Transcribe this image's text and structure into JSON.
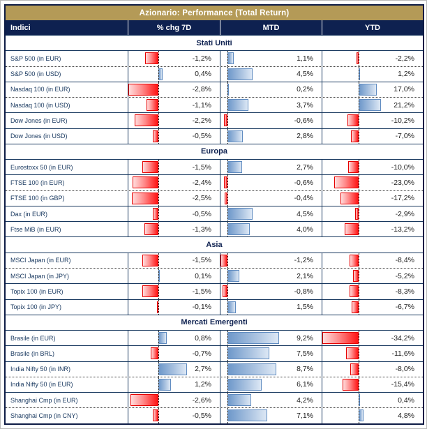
{
  "title_bar": {
    "text": "Azionario: Performance (Total Return)"
  },
  "header": {
    "indici": "Indici",
    "chg7d": "% chg 7D",
    "mtd": "MTD",
    "ytd": "YTD"
  },
  "colors": {
    "title_gold": "#b49a57",
    "header_navy": "#0e2150",
    "grid_navy": "#17375e",
    "negative_bar": "#ff0000",
    "positive_bar": "#6e98ca"
  },
  "chart_data": {
    "type": "table",
    "title": "Azionario: Performance (Total Return)",
    "columns": [
      "Indici",
      "% chg 7D",
      "MTD",
      "YTD"
    ],
    "value_format": "percent, 1 decimal, comma as decimal separator",
    "databar_axis_ranges": {
      "chg7d": [
        -2.8,
        2.7
      ],
      "mtd": [
        -1.2,
        9.2
      ],
      "ytd": [
        -34.2,
        21.2
      ]
    },
    "databar_colors": {
      "negative": "red",
      "positive": "blue"
    },
    "sections": [
      {
        "title": "Stati Uniti",
        "rows": [
          {
            "label": "S&P 500 (in EUR)",
            "values": [
              -1.2,
              1.1,
              -2.2
            ],
            "display": [
              "-1,2%",
              "1,1%",
              "-2,2%"
            ],
            "sep": "solid"
          },
          {
            "label": "S&P 500 (in USD)",
            "values": [
              0.4,
              4.5,
              1.2
            ],
            "display": [
              "0,4%",
              "4,5%",
              "1,2%"
            ],
            "sep": "dotted"
          },
          {
            "label": "Nasdaq 100 (in EUR)",
            "values": [
              -2.8,
              0.2,
              17.0
            ],
            "display": [
              "-2,8%",
              "0,2%",
              "17,0%"
            ],
            "sep": "solid"
          },
          {
            "label": "Nasdaq 100 (in USD)",
            "values": [
              -1.1,
              3.7,
              21.2
            ],
            "display": [
              "-1,1%",
              "3,7%",
              "21,2%"
            ],
            "sep": "dotted"
          },
          {
            "label": "Dow Jones (in EUR)",
            "values": [
              -2.2,
              -0.6,
              -10.2
            ],
            "display": [
              "-2,2%",
              "-0,6%",
              "-10,2%"
            ],
            "sep": "solid"
          },
          {
            "label": "Dow Jones (in USD)",
            "values": [
              -0.5,
              2.8,
              -7.0
            ],
            "display": [
              "-0,5%",
              "2,8%",
              "-7,0%"
            ],
            "sep": "solid"
          }
        ]
      },
      {
        "title": "Europa",
        "rows": [
          {
            "label": "Eurostoxx 50 (in EUR)",
            "values": [
              -1.5,
              2.7,
              -10.0
            ],
            "display": [
              "-1,5%",
              "2,7%",
              "-10,0%"
            ],
            "sep": "solid"
          },
          {
            "label": "FTSE 100 (in EUR)",
            "values": [
              -2.4,
              -0.6,
              -23.0
            ],
            "display": [
              "-2,4%",
              "-0,6%",
              "-23,0%"
            ],
            "sep": "solid"
          },
          {
            "label": "FTSE 100 (in GBP)",
            "values": [
              -2.5,
              -0.4,
              -17.2
            ],
            "display": [
              "-2,5%",
              "-0,4%",
              "-17,2%"
            ],
            "sep": "dotted"
          },
          {
            "label": "Dax (in EUR)",
            "values": [
              -0.5,
              4.5,
              -2.9
            ],
            "display": [
              "-0,5%",
              "4,5%",
              "-2,9%"
            ],
            "sep": "solid"
          },
          {
            "label": "Ftse MiB (in EUR)",
            "values": [
              -1.3,
              4.0,
              -13.2
            ],
            "display": [
              "-1,3%",
              "4,0%",
              "-13,2%"
            ],
            "sep": "solid"
          }
        ]
      },
      {
        "title": "Asia",
        "rows": [
          {
            "label": "MSCI Japan (in EUR)",
            "values": [
              -1.5,
              -1.2,
              -8.4
            ],
            "display": [
              "-1,5%",
              "-1,2%",
              "-8,4%"
            ],
            "sep": "solid"
          },
          {
            "label": "MSCI Japan (in JPY)",
            "values": [
              0.1,
              2.1,
              -5.2
            ],
            "display": [
              "0,1%",
              "2,1%",
              "-5,2%"
            ],
            "sep": "dotted"
          },
          {
            "label": "Topix 100 (in EUR)",
            "values": [
              -1.5,
              -0.8,
              -8.3
            ],
            "display": [
              "-1,5%",
              "-0,8%",
              "-8,3%"
            ],
            "sep": "solid"
          },
          {
            "label": "Topix 100 (in JPY)",
            "values": [
              -0.1,
              1.5,
              -6.7
            ],
            "display": [
              "-0,1%",
              "1,5%",
              "-6,7%"
            ],
            "sep": "solid"
          }
        ]
      },
      {
        "title": "Mercati Emergenti",
        "rows": [
          {
            "label": "Brasile (in EUR)",
            "values": [
              0.8,
              9.2,
              -34.2
            ],
            "display": [
              "0,8%",
              "9,2%",
              "-34,2%"
            ],
            "sep": "solid"
          },
          {
            "label": "Brasile (in BRL)",
            "values": [
              -0.7,
              7.5,
              -11.6
            ],
            "display": [
              "-0,7%",
              "7,5%",
              "-11,6%"
            ],
            "sep": "solid"
          },
          {
            "label": "India Nifty 50 (in INR)",
            "values": [
              2.7,
              8.7,
              -8.0
            ],
            "display": [
              "2,7%",
              "8,7%",
              "-8,0%"
            ],
            "sep": "solid"
          },
          {
            "label": "India Nifty 50 (in EUR)",
            "values": [
              1.2,
              6.1,
              -15.4
            ],
            "display": [
              "1,2%",
              "6,1%",
              "-15,4%"
            ],
            "sep": "dotted"
          },
          {
            "label": "Shanghai Cmp (in EUR)",
            "values": [
              -2.6,
              4.2,
              0.4
            ],
            "display": [
              "-2,6%",
              "4,2%",
              "0,4%"
            ],
            "sep": "solid"
          },
          {
            "label": "Shanghai Cmp (in CNY)",
            "values": [
              -0.5,
              7.1,
              4.8
            ],
            "display": [
              "-0,5%",
              "7,1%",
              "4,8%"
            ],
            "sep": "dotted"
          }
        ]
      }
    ]
  }
}
